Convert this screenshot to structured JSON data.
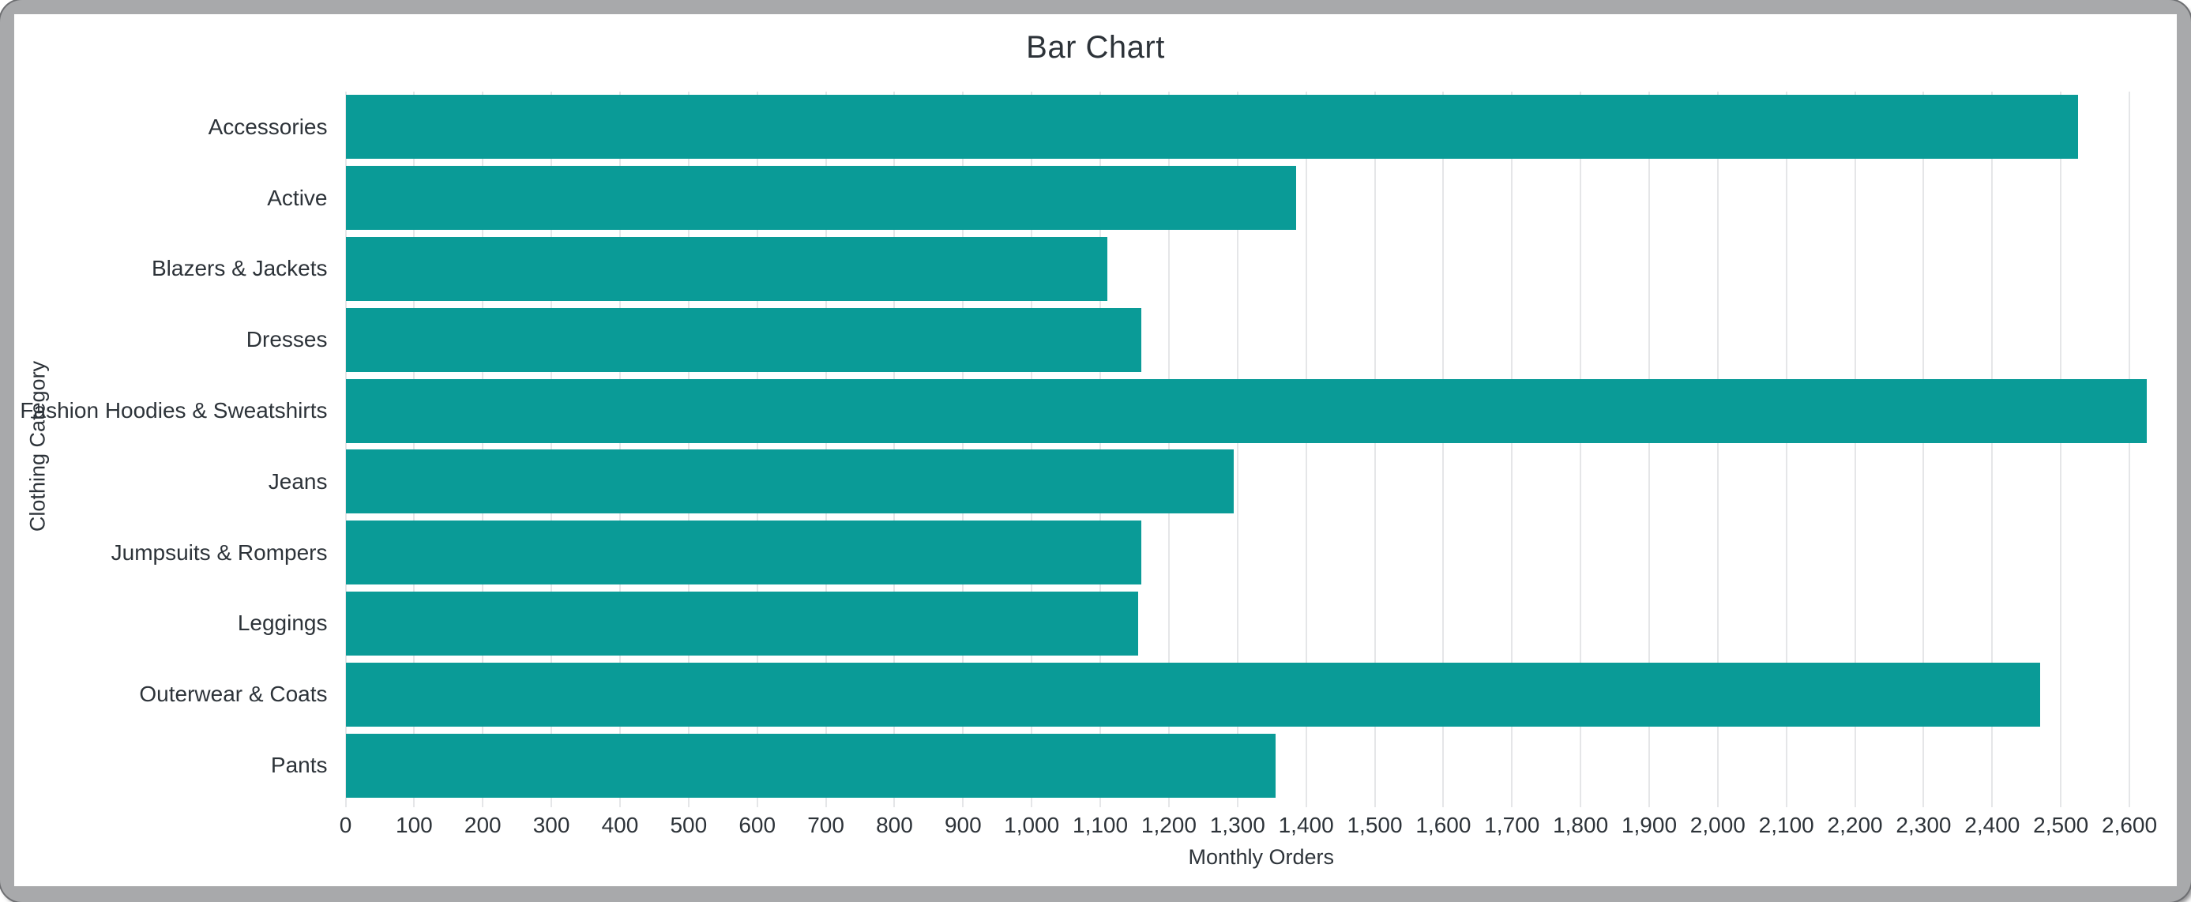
{
  "window": {
    "frame_color": "#a8a9ab",
    "card_background": "#ffffff",
    "text_color": "#2d3339",
    "grid_color": "#e5e6e8"
  },
  "chart_data": {
    "type": "bar",
    "orientation": "horizontal",
    "title": "Bar Chart",
    "xlabel": "Monthly Orders",
    "ylabel": "Clothing Category",
    "categories": [
      "Accessories",
      "Active",
      "Blazers & Jackets",
      "Dresses",
      "Fashion Hoodies & Sweatshirts",
      "Jeans",
      "Jumpsuits & Rompers",
      "Leggings",
      "Outerwear & Coats",
      "Pants"
    ],
    "values": [
      2525,
      1385,
      1110,
      1160,
      2625,
      1295,
      1160,
      1155,
      2470,
      1355
    ],
    "xlim": [
      0,
      2669
    ],
    "x_ticks": [
      0,
      100,
      200,
      300,
      400,
      500,
      600,
      700,
      800,
      900,
      1000,
      1100,
      1200,
      1300,
      1400,
      1500,
      1600,
      1700,
      1800,
      1900,
      2000,
      2100,
      2200,
      2300,
      2400,
      2500,
      2600
    ],
    "x_tick_labels": [
      "0",
      "100",
      "200",
      "300",
      "400",
      "500",
      "600",
      "700",
      "800",
      "900",
      "1,000",
      "1,100",
      "1,200",
      "1,300",
      "1,400",
      "1,500",
      "1,600",
      "1,700",
      "1,800",
      "1,900",
      "2,000",
      "2,100",
      "2,200",
      "2,300",
      "2,400",
      "2,500",
      "2,600"
    ],
    "grid": "vertical",
    "legend": "none",
    "bar_color": "#0a9b97"
  }
}
